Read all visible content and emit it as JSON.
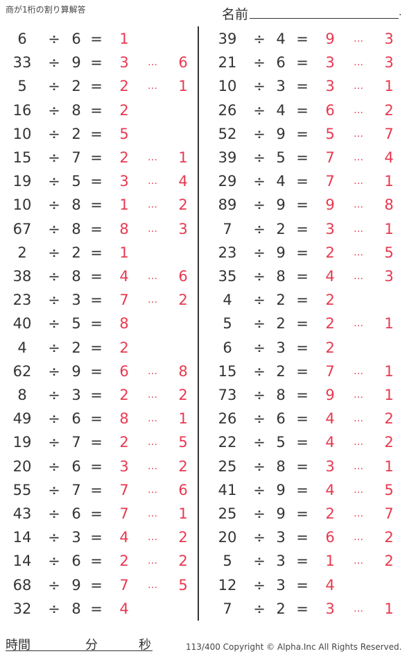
{
  "header": {
    "title": "商が1桁の割り算解答",
    "name_label": "名前",
    "name_end": "."
  },
  "symbols": {
    "divide": "÷",
    "equals": "=",
    "remainder": "…"
  },
  "colors": {
    "text": "#333333",
    "answer": "#e8384f"
  },
  "problems_left": [
    [
      "6",
      "6",
      "1",
      ""
    ],
    [
      "33",
      "9",
      "3",
      "6"
    ],
    [
      "5",
      "2",
      "2",
      "1"
    ],
    [
      "16",
      "8",
      "2",
      ""
    ],
    [
      "10",
      "2",
      "5",
      ""
    ],
    [
      "15",
      "7",
      "2",
      "1"
    ],
    [
      "19",
      "5",
      "3",
      "4"
    ],
    [
      "10",
      "8",
      "1",
      "2"
    ],
    [
      "67",
      "8",
      "8",
      "3"
    ],
    [
      "2",
      "2",
      "1",
      ""
    ],
    [
      "38",
      "8",
      "4",
      "6"
    ],
    [
      "23",
      "3",
      "7",
      "2"
    ],
    [
      "40",
      "5",
      "8",
      ""
    ],
    [
      "4",
      "2",
      "2",
      ""
    ],
    [
      "62",
      "9",
      "6",
      "8"
    ],
    [
      "8",
      "3",
      "2",
      "2"
    ],
    [
      "49",
      "6",
      "8",
      "1"
    ],
    [
      "19",
      "7",
      "2",
      "5"
    ],
    [
      "20",
      "6",
      "3",
      "2"
    ],
    [
      "55",
      "7",
      "7",
      "6"
    ],
    [
      "43",
      "6",
      "7",
      "1"
    ],
    [
      "14",
      "3",
      "4",
      "2"
    ],
    [
      "14",
      "6",
      "2",
      "2"
    ],
    [
      "68",
      "9",
      "7",
      "5"
    ],
    [
      "32",
      "8",
      "4",
      ""
    ]
  ],
  "problems_right": [
    [
      "39",
      "4",
      "9",
      "3"
    ],
    [
      "21",
      "6",
      "3",
      "3"
    ],
    [
      "10",
      "3",
      "3",
      "1"
    ],
    [
      "26",
      "4",
      "6",
      "2"
    ],
    [
      "52",
      "9",
      "5",
      "7"
    ],
    [
      "39",
      "5",
      "7",
      "4"
    ],
    [
      "29",
      "4",
      "7",
      "1"
    ],
    [
      "89",
      "9",
      "9",
      "8"
    ],
    [
      "7",
      "2",
      "3",
      "1"
    ],
    [
      "23",
      "9",
      "2",
      "5"
    ],
    [
      "35",
      "8",
      "4",
      "3"
    ],
    [
      "4",
      "2",
      "2",
      ""
    ],
    [
      "5",
      "2",
      "2",
      "1"
    ],
    [
      "6",
      "3",
      "2",
      ""
    ],
    [
      "15",
      "2",
      "7",
      "1"
    ],
    [
      "73",
      "8",
      "9",
      "1"
    ],
    [
      "26",
      "6",
      "4",
      "2"
    ],
    [
      "22",
      "5",
      "4",
      "2"
    ],
    [
      "25",
      "8",
      "3",
      "1"
    ],
    [
      "41",
      "9",
      "4",
      "5"
    ],
    [
      "25",
      "9",
      "2",
      "7"
    ],
    [
      "20",
      "3",
      "6",
      "2"
    ],
    [
      "5",
      "3",
      "1",
      "2"
    ],
    [
      "12",
      "3",
      "4",
      ""
    ],
    [
      "7",
      "2",
      "3",
      "1"
    ]
  ],
  "footer": {
    "time_label": "時間",
    "minutes_label": "分",
    "seconds_label": "秒",
    "copyright": "113/400 Copyright ©  Alpha.Inc All Rights Reserved."
  }
}
